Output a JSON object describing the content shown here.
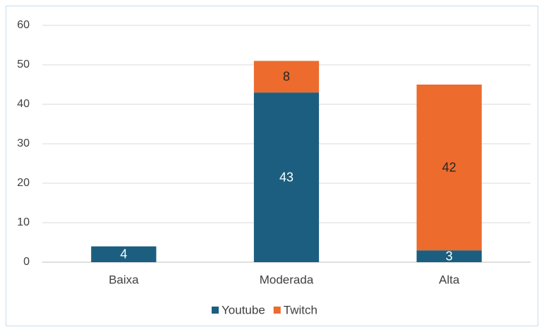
{
  "chart_data": {
    "type": "stacked_bar",
    "categories": [
      "Baixa",
      "Moderada",
      "Alta"
    ],
    "series": [
      {
        "name": "Youtube",
        "color": "#1b5e80",
        "values": [
          4,
          43,
          3
        ]
      },
      {
        "name": "Twitch",
        "color": "#ec6b2d",
        "values": [
          null,
          8,
          42
        ]
      }
    ],
    "ylim": [
      0,
      60
    ],
    "yticks": [
      0,
      10,
      20,
      30,
      40,
      50,
      60
    ],
    "grid": true,
    "legend": "bottom"
  }
}
